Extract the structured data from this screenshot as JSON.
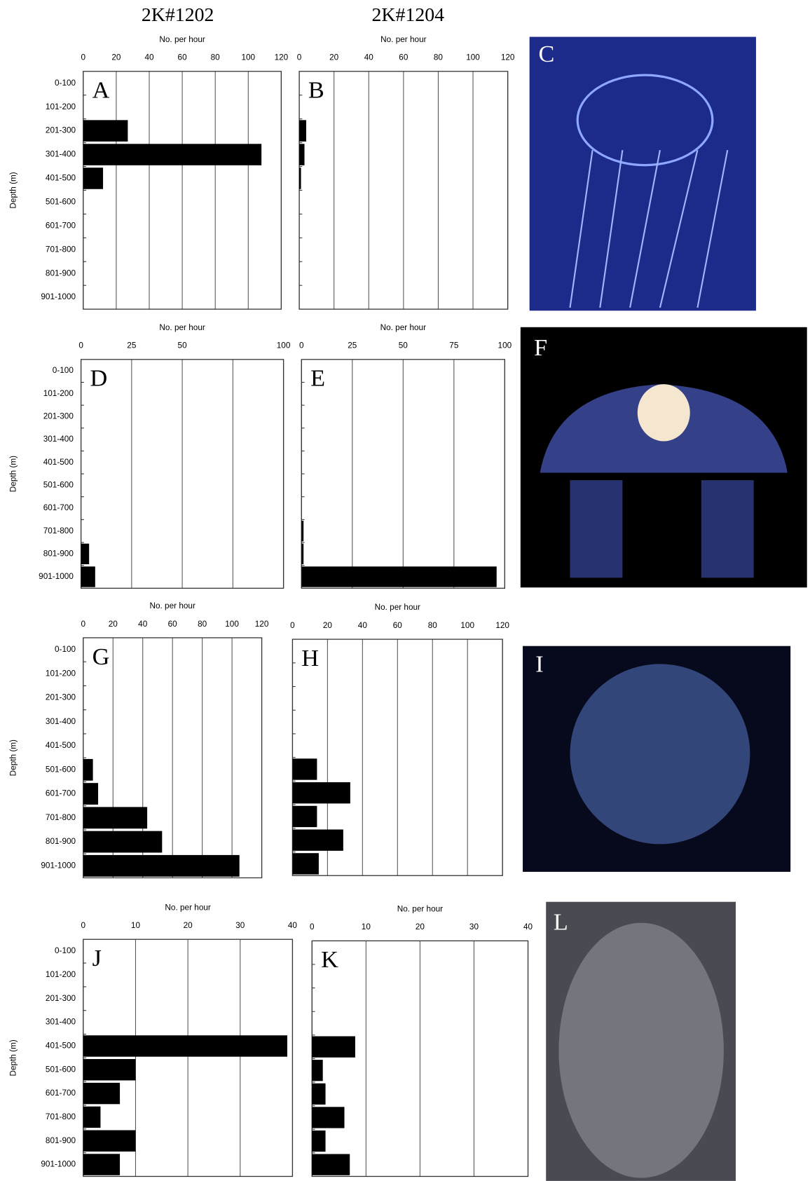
{
  "column_headers": [
    "2K#1202",
    "2K#1204"
  ],
  "chart_data": [
    {
      "type": "bar",
      "orientation": "horizontal",
      "panel": "A",
      "xlabel": "No. per hour",
      "ylabel": "Depth (m)",
      "categories": [
        "0-100",
        "101-200",
        "201-300",
        "301-400",
        "401-500",
        "501-600",
        "601-700",
        "701-800",
        "801-900",
        "901-1000"
      ],
      "values": [
        0,
        0,
        27,
        108,
        12,
        0,
        0,
        0,
        0,
        0
      ],
      "color": "#000000",
      "xlim": [
        0,
        120
      ],
      "xticks": [
        0,
        20,
        40,
        60,
        80,
        100,
        120
      ],
      "grid": true
    },
    {
      "type": "bar",
      "orientation": "horizontal",
      "panel": "B",
      "xlabel": "No. per hour",
      "values": [
        0,
        0,
        4,
        3,
        1,
        0,
        0,
        0,
        0,
        0
      ],
      "color": "#000000",
      "xlim": [
        0,
        120
      ],
      "xticks": [
        0,
        20,
        40,
        60,
        80,
        100,
        120
      ],
      "grid": true
    },
    {
      "type": "bar",
      "orientation": "horizontal",
      "panel": "D",
      "xlabel": "No. per hour",
      "ylabel": "Depth (m)",
      "categories": [
        "0-100",
        "101-200",
        "201-300",
        "301-400",
        "401-500",
        "501-600",
        "601-700",
        "701-800",
        "801-900",
        "901-1000"
      ],
      "values": [
        0,
        0,
        0,
        0,
        0,
        0,
        0,
        0,
        4,
        7
      ],
      "color": "#000000",
      "xlim": [
        0,
        100
      ],
      "xticks": [
        0,
        25,
        50,
        {
          "value": 75,
          "label": null
        },
        100
      ],
      "grid": true
    },
    {
      "type": "bar",
      "orientation": "horizontal",
      "panel": "E",
      "xlabel": "No. per hour",
      "values": [
        0,
        0,
        0,
        0,
        0,
        0,
        0,
        1,
        1,
        96
      ],
      "color": "#000000",
      "xlim": [
        0,
        100
      ],
      "xticks": [
        0,
        25,
        50,
        75,
        100
      ],
      "grid": true
    },
    {
      "type": "bar",
      "orientation": "horizontal",
      "panel": "G",
      "xlabel": "No. per hour",
      "ylabel": "Depth (m)",
      "categories": [
        "0-100",
        "101-200",
        "201-300",
        "301-400",
        "401-500",
        "501-600",
        "601-700",
        "701-800",
        "801-900",
        "901-1000"
      ],
      "values": [
        0,
        0,
        0,
        0,
        0,
        6.5,
        10,
        43,
        53,
        105
      ],
      "color": "#000000",
      "xlim": [
        0,
        120
      ],
      "xticks": [
        0,
        20,
        40,
        60,
        80,
        100,
        120
      ],
      "grid": true
    },
    {
      "type": "bar",
      "orientation": "horizontal",
      "panel": "H",
      "xlabel": "No. per hour",
      "values": [
        0,
        0,
        0,
        0,
        0,
        14,
        33,
        14,
        29,
        15
      ],
      "color": "#000000",
      "xlim": [
        0,
        120
      ],
      "xticks": [
        0,
        20,
        40,
        60,
        80,
        100,
        120
      ],
      "grid": true
    },
    {
      "type": "bar",
      "orientation": "horizontal",
      "panel": "J",
      "xlabel": "No. per hour",
      "ylabel": "Depth (m)",
      "categories": [
        "0-100",
        "101-200",
        "201-300",
        "301-400",
        "401-500",
        "501-600",
        "601-700",
        "701-800",
        "801-900",
        "901-1000"
      ],
      "values": [
        0,
        0,
        0,
        0,
        39,
        10,
        7,
        3.3,
        10,
        7
      ],
      "color": "#000000",
      "xlim": [
        0,
        40
      ],
      "xticks": [
        0,
        10,
        20,
        30,
        40
      ],
      "grid": true
    },
    {
      "type": "bar",
      "orientation": "horizontal",
      "panel": "K",
      "xlabel": "No. per hour",
      "values": [
        0,
        0,
        0,
        0,
        8,
        2,
        2.5,
        6,
        2.5,
        7
      ],
      "color": "#000000",
      "xlim": [
        0,
        40
      ],
      "xticks": [
        0,
        10,
        20,
        30,
        40
      ],
      "grid": true
    }
  ],
  "photos": [
    {
      "label": "C"
    },
    {
      "label": "F"
    },
    {
      "label": "I"
    },
    {
      "label": "L"
    }
  ]
}
